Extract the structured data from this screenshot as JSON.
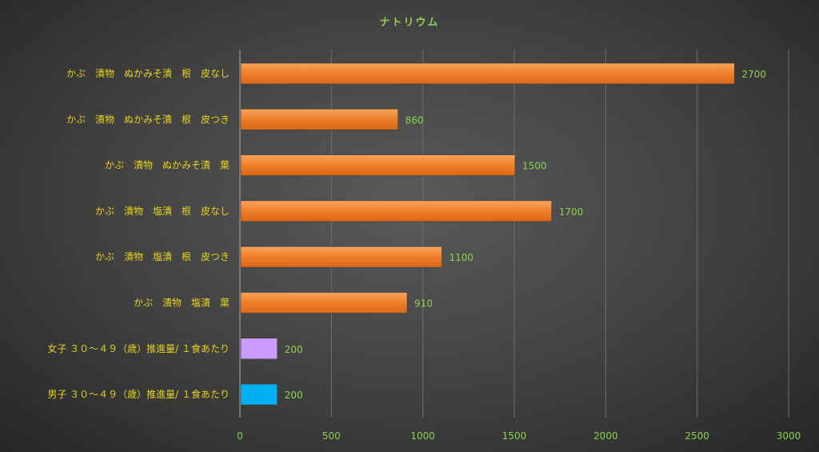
{
  "chart_data": {
    "type": "bar",
    "orientation": "horizontal",
    "title": "ナトリウム",
    "categories": [
      "かぶ　漬物　ぬかみそ漬　根　皮なし",
      "かぶ　漬物　ぬかみそ漬　根　皮つき",
      "かぶ　漬物　ぬかみそ漬　葉",
      "かぶ　漬物　塩漬　根　皮なし",
      "かぶ　漬物　塩漬　根　皮つき",
      "かぶ　漬物　塩漬　葉",
      "女子 ３０～４９（歳）推進量/ １食あたり",
      "男子 ３０～４９（歳）推進量/ １食あたり"
    ],
    "values": [
      2700,
      860,
      1500,
      1700,
      1100,
      910,
      200,
      200
    ],
    "data_labels": [
      "2700",
      "860",
      "1500",
      "1700",
      "1100",
      "910",
      "200",
      "200"
    ],
    "bar_colors": [
      "#f07f2a",
      "#f07f2a",
      "#f07f2a",
      "#f07f2a",
      "#f07f2a",
      "#f07f2a",
      "#cc99ff",
      "#00b0f0"
    ],
    "xlim": [
      0,
      3000
    ],
    "xticks": [
      0,
      500,
      1000,
      1500,
      2000,
      2500,
      3000
    ],
    "xtick_labels": [
      "0",
      "500",
      "1000",
      "1500",
      "2000",
      "2500",
      "3000"
    ],
    "grid": true,
    "legend": false,
    "xlabel": "",
    "ylabel": ""
  }
}
